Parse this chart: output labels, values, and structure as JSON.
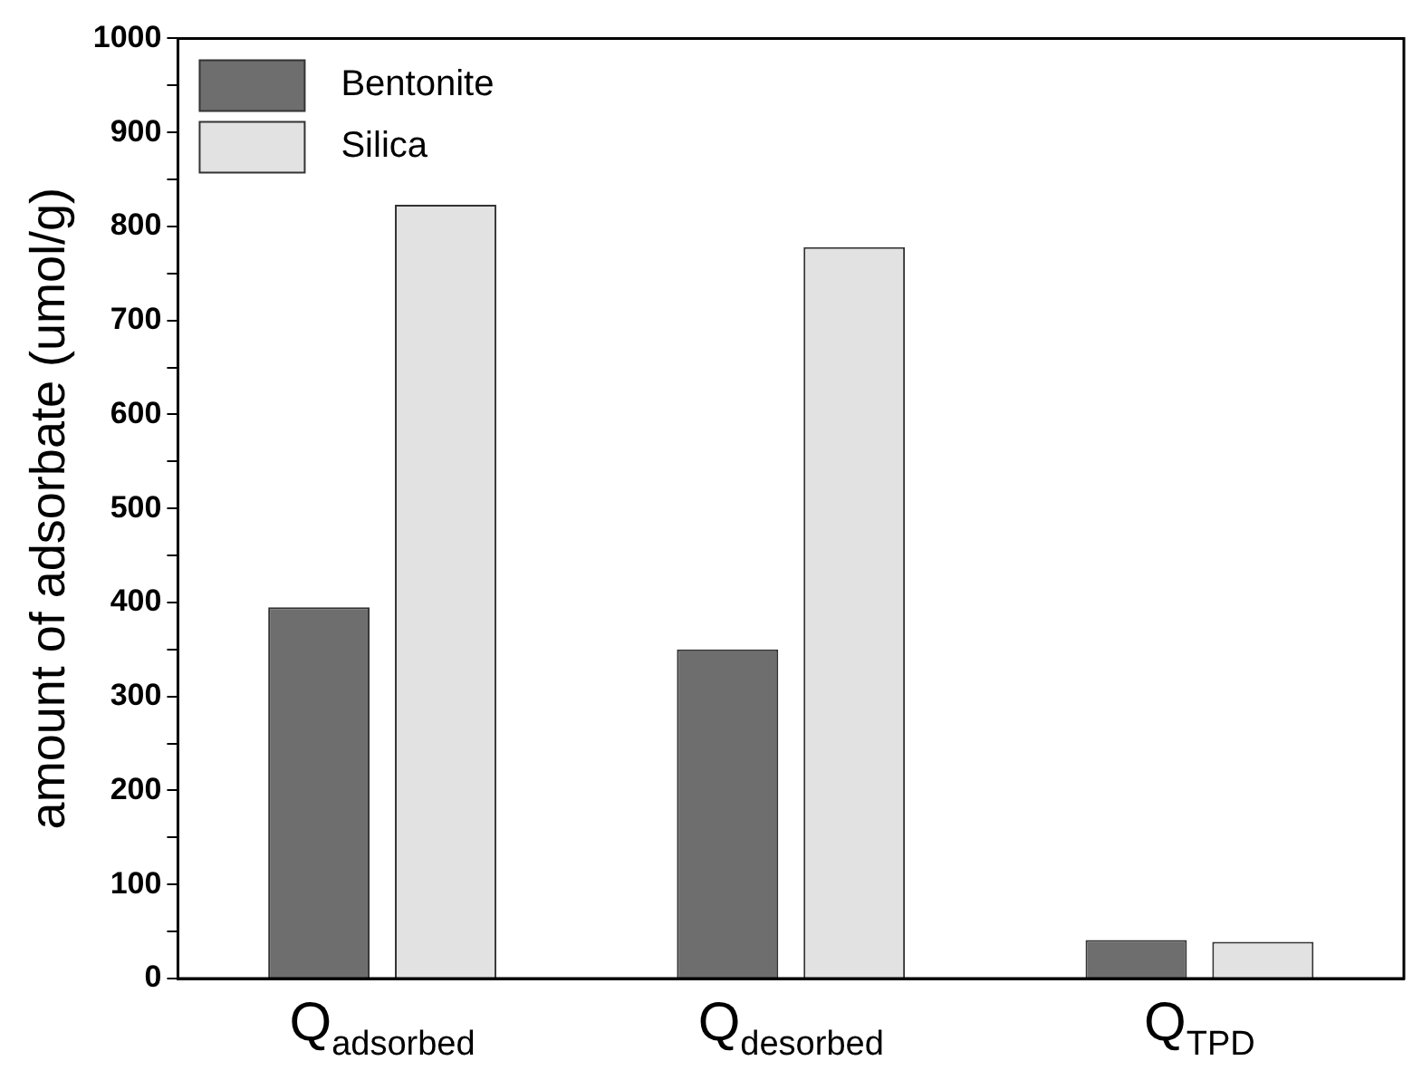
{
  "chart_data": {
    "type": "bar",
    "ylabel": "amount of adsorbate (umol/g)",
    "categories": [
      "Q$_{adsorbed}$",
      "Q$_{desorbed}$",
      "Q$_{TPD}$"
    ],
    "series": [
      {
        "name": "Bentonite",
        "color": "#6e6e6e",
        "values": [
          395,
          350,
          41
        ]
      },
      {
        "name": "Silica",
        "color": "#e2e2e2",
        "values": [
          823,
          778,
          39
        ]
      }
    ],
    "ylim": [
      0,
      1000
    ],
    "yticks": [
      0,
      {
        "value": 50,
        "label": null
      },
      100,
      {
        "value": 150,
        "label": null
      },
      200,
      {
        "value": 250,
        "label": null
      },
      300,
      {
        "value": 350,
        "label": null
      },
      400,
      {
        "value": 450,
        "label": null
      },
      500,
      {
        "value": 550,
        "label": null
      },
      600,
      {
        "value": 650,
        "label": null
      },
      700,
      {
        "value": 750,
        "label": null
      },
      800,
      {
        "value": 850,
        "label": null
      },
      900,
      {
        "value": 950,
        "label": null
      },
      1000
    ],
    "grid": false,
    "legend": "top left"
  }
}
